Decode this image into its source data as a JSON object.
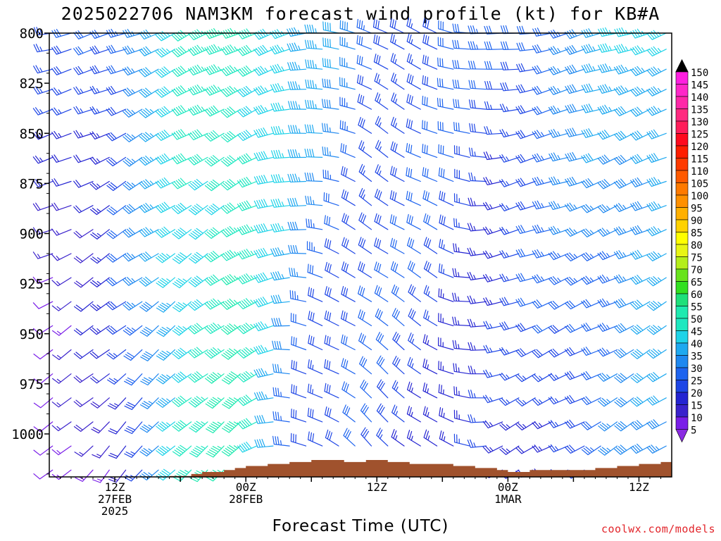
{
  "chart_data": {
    "type": "wind-barb time-height section",
    "title": "2025022706 NAM3KM forecast wind profile (kt) for KB#A",
    "xlabel": "Forecast Time (UTC)",
    "credit": "coolwx.com/models",
    "y_axis": {
      "label": "",
      "range": [
        800,
        1025
      ],
      "inverted": true,
      "ticks": [
        "800",
        "825",
        "850",
        "875",
        "900",
        "925",
        "950",
        "975",
        "1000"
      ]
    },
    "x_axis": {
      "range_hours": [
        0,
        57
      ],
      "ticks": [
        {
          "hour": 6,
          "lines": [
            "12Z",
            "27FEB",
            "2025"
          ]
        },
        {
          "hour": 18,
          "lines": [
            "00Z",
            "28FEB"
          ]
        },
        {
          "hour": 30,
          "lines": [
            "12Z"
          ]
        },
        {
          "hour": 42,
          "lines": [
            "00Z",
            "1MAR"
          ]
        },
        {
          "hour": 54,
          "lines": [
            "12Z"
          ]
        }
      ]
    },
    "colorbar": {
      "levels": [
        5,
        10,
        15,
        20,
        25,
        30,
        35,
        40,
        45,
        50,
        55,
        60,
        65,
        70,
        75,
        80,
        85,
        90,
        95,
        100,
        105,
        110,
        115,
        120,
        125,
        130,
        135,
        140,
        145,
        150
      ],
      "colors": [
        "#8a2be2",
        "#7a1ee8",
        "#3a22cc",
        "#2424d2",
        "#1e46e6",
        "#1e64ef",
        "#1e88f0",
        "#1ea9f0",
        "#1ed3e8",
        "#1ee8c0",
        "#1eeab0",
        "#1ee07a",
        "#32e020",
        "#68e31c",
        "#b4ee1a",
        "#e8f514",
        "#ffff00",
        "#ffd200",
        "#ffb000",
        "#ff9000",
        "#ff7a00",
        "#ff5a00",
        "#ff3a00",
        "#ff1e00",
        "#ff0a1e",
        "#ff1e5a",
        "#ff2a80",
        "#ff28a8",
        "#ff28c8",
        "#ff20e0"
      ]
    },
    "terrain_color": "#a0522d",
    "surface_pressure": [
      1025,
      1025,
      1024,
      1024,
      1024,
      1024,
      1024,
      1023,
      1023,
      1022,
      1022,
      1021,
      1021,
      1020,
      1019,
      1019,
      1018,
      1017,
      1016,
      1016,
      1015,
      1015,
      1014,
      1014,
      1013,
      1013,
      1013,
      1014,
      1014,
      1013,
      1013,
      1014,
      1014,
      1015,
      1015,
      1015,
      1015,
      1016,
      1016,
      1017,
      1017,
      1018,
      1019,
      1019,
      1018,
      1018,
      1018,
      1018,
      1018,
      1018,
      1017,
      1017,
      1016,
      1016,
      1015,
      1015,
      1014,
      1014
    ],
    "barb_columns_hours": [
      0.3,
      2,
      4,
      5.5,
      7,
      8.5,
      10,
      11.5,
      13,
      14.5,
      16,
      17.5,
      19,
      20.5,
      22,
      23.5,
      25,
      26.5,
      28,
      29.5,
      31,
      32.5,
      34,
      35.5,
      37,
      38.5,
      40,
      41.5,
      43,
      44.5,
      46,
      47.5,
      49,
      50.5,
      52,
      53.5,
      55,
      56.5
    ],
    "barb_levels_hpa": [
      800,
      808,
      818,
      828,
      838,
      850,
      862,
      874,
      886,
      898,
      910,
      922,
      934,
      946,
      958,
      970,
      982,
      994,
      1006,
      1018
    ],
    "winds": {
      "description": "representative wind direction (deg) and speed (kt) by forecast hour and pressure",
      "anchors": [
        {
          "hour": 0,
          "low_dir": 230,
          "low_spd": 8,
          "high_dir": 260,
          "high_spd": 25
        },
        {
          "hour": 6,
          "low_dir": 220,
          "low_spd": 15,
          "high_dir": 250,
          "high_spd": 32
        },
        {
          "hour": 12,
          "low_dir": 225,
          "low_spd": 50,
          "high_dir": 245,
          "high_spd": 48
        },
        {
          "hour": 18,
          "low_dir": 230,
          "low_spd": 55,
          "high_dir": 245,
          "high_spd": 55
        },
        {
          "hour": 24,
          "low_dir": 300,
          "low_spd": 25,
          "high_dir": 260,
          "high_spd": 45
        },
        {
          "hour": 30,
          "low_dir": 315,
          "low_spd": 28,
          "high_dir": 300,
          "high_spd": 30
        },
        {
          "hour": 36,
          "low_dir": 305,
          "low_spd": 25,
          "high_dir": 290,
          "high_spd": 30
        },
        {
          "hour": 42,
          "low_dir": 240,
          "low_spd": 20,
          "high_dir": 265,
          "high_spd": 30
        },
        {
          "hour": 48,
          "low_dir": 240,
          "low_spd": 28,
          "high_dir": 255,
          "high_spd": 38
        },
        {
          "hour": 57,
          "low_dir": 235,
          "low_spd": 38,
          "high_dir": 250,
          "high_spd": 48
        }
      ]
    }
  }
}
